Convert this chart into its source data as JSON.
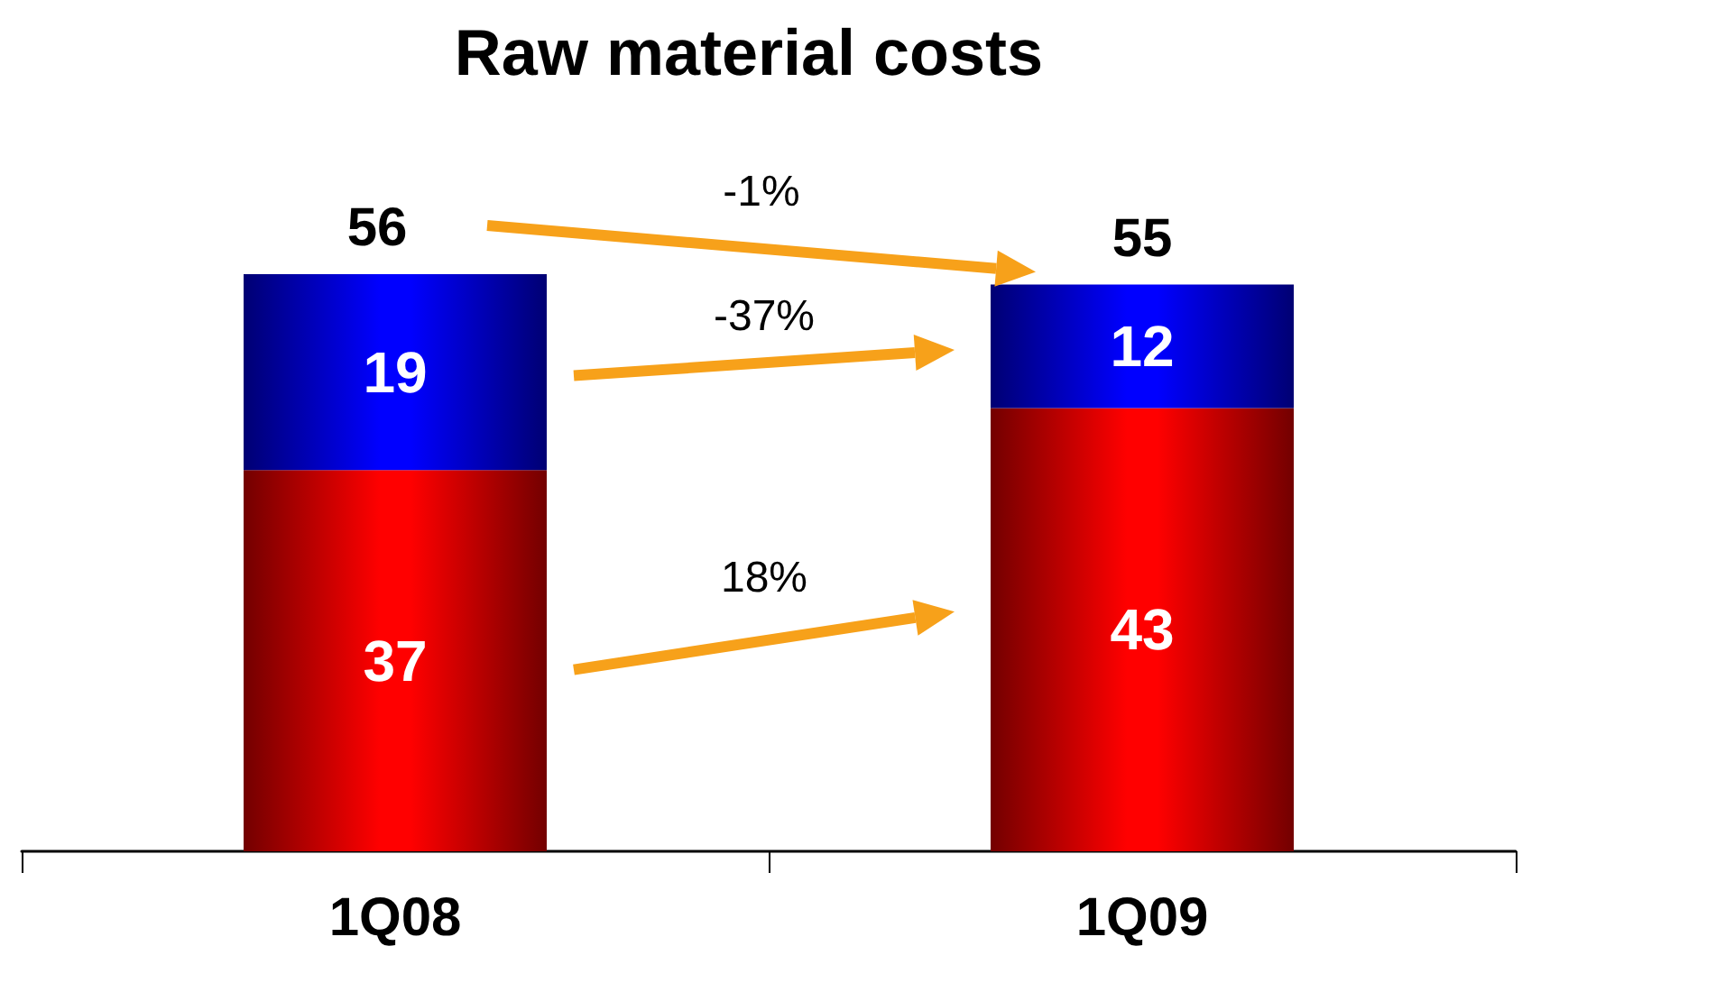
{
  "chart_data": {
    "type": "bar",
    "title": "Raw material costs",
    "categories": [
      "1Q08",
      "1Q09"
    ],
    "stacked": true,
    "data_labels": true,
    "series": [
      {
        "color": "#ff0000",
        "values": [
          37,
          43
        ]
      },
      {
        "color": "#0000ff",
        "values": [
          19,
          12
        ]
      }
    ],
    "totals": [
      "56",
      "55"
    ],
    "annotations": [
      "-1%",
      "-37%",
      "18%"
    ]
  }
}
